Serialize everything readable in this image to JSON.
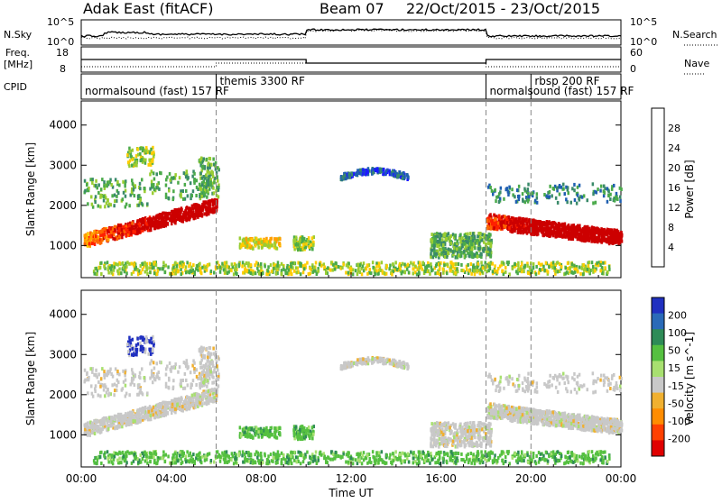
{
  "header": {
    "title": "Adak East (fitACF)",
    "beam": "Beam 07",
    "date_range": "22/Oct/2015 - 23/Oct/2015"
  },
  "strip": {
    "nsky_label": "N.Sky",
    "nsky_ticks": [
      "10^5",
      "10^0"
    ],
    "nsearch_label": "N.Search",
    "right_ticks_top": [
      "10^5",
      "10^0"
    ],
    "freq_label": "Freq.",
    "freq_unit": "[MHz]",
    "freq_ticks": [
      "18",
      "8"
    ],
    "nave_label": "Nave",
    "nave_ticks": [
      "60",
      "0"
    ],
    "cpid_label": "CPID"
  },
  "cpid_segments": [
    {
      "label": "normalsound (fast) 157 RF",
      "start_hr": 0
    },
    {
      "label": "themis 3300 RF",
      "start_hr": 6
    },
    {
      "label": "normalsound (fast) 157 RF",
      "start_hr": 18
    },
    {
      "label": "rbsp 200 RF",
      "start_hr": 20
    }
  ],
  "chart_data": [
    {
      "type": "heatmap",
      "name": "power",
      "ylabel": "Slant Range [km]",
      "xlabel": "Time UT",
      "xlim": [
        0,
        24
      ],
      "ylim": [
        200,
        4600
      ],
      "x_ticks": [
        "00:00",
        "04:00",
        "08:00",
        "12:00",
        "16:00",
        "20:00",
        "00:00"
      ],
      "y_ticks": [
        1000,
        2000,
        3000,
        4000
      ],
      "colorbar": {
        "label": "Power [dB]",
        "ticks": [
          "4",
          "8",
          "12",
          "16",
          "20",
          "24",
          "28"
        ],
        "colors": [
          "#1a1aff",
          "#1f5fb0",
          "#3a8a6a",
          "#4aaa4a",
          "#9acd32",
          "#ffcc00",
          "#ffa000",
          "#ff6600",
          "#ff2000",
          "#cc0000"
        ]
      }
    },
    {
      "type": "heatmap",
      "name": "velocity",
      "ylabel": "Slant Range [km]",
      "xlabel": "Time UT",
      "xlim": [
        0,
        24
      ],
      "ylim": [
        200,
        4600
      ],
      "x_ticks": [
        "00:00",
        "04:00",
        "08:00",
        "12:00",
        "16:00",
        "20:00",
        "00:00"
      ],
      "y_ticks": [
        1000,
        2000,
        3000,
        4000
      ],
      "colorbar": {
        "label": "Velocity [m s^-1]",
        "ticks": [
          "200",
          "100",
          "50",
          "15",
          "-15",
          "-50",
          "-100",
          "-200"
        ],
        "colors": [
          "#2030c0",
          "#2a6ab8",
          "#2e8b57",
          "#55c040",
          "#a8e070",
          "#c8c8c8",
          "#f0b030",
          "#ff8c00",
          "#ff4000",
          "#e00000"
        ]
      }
    }
  ],
  "time_axis_label": "Time UT"
}
